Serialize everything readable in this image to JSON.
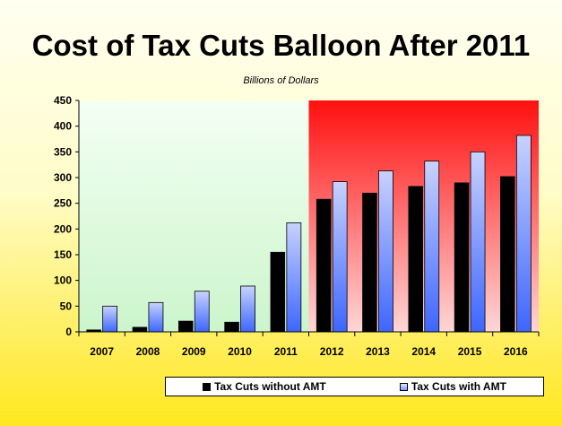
{
  "title": "Cost of Tax Cuts Balloon After 2011",
  "subtitle": "Billions of Dollars",
  "colors": {
    "series1": "#000000",
    "series2_top": "#c8d2ff",
    "series2_bottom": "#3d66ff",
    "panel_left_top": "#f4fff4",
    "panel_left_bottom": "#ccf5cc",
    "panel_right_top": "#ff1010",
    "panel_right_bottom": "#ffd6d6"
  },
  "chart_data": {
    "type": "bar",
    "title": "Cost of Tax Cuts Balloon After 2011",
    "subtitle": "Billions of Dollars",
    "categories": [
      "2007",
      "2008",
      "2009",
      "2010",
      "2011",
      "2012",
      "2013",
      "2014",
      "2015",
      "2016"
    ],
    "series": [
      {
        "name": "Tax Cuts without AMT",
        "values": [
          4,
          9,
          21,
          19,
          155,
          258,
          270,
          283,
          290,
          302
        ]
      },
      {
        "name": "Tax Cuts with AMT",
        "values": [
          50,
          57,
          79,
          89,
          212,
          292,
          313,
          332,
          350,
          382
        ]
      }
    ],
    "ylim": [
      0,
      450
    ],
    "yticks": [
      0,
      50,
      100,
      150,
      200,
      250,
      300,
      350,
      400,
      450
    ],
    "xlabel": "",
    "ylabel": "",
    "grid": false,
    "legend": "bottom-right"
  }
}
